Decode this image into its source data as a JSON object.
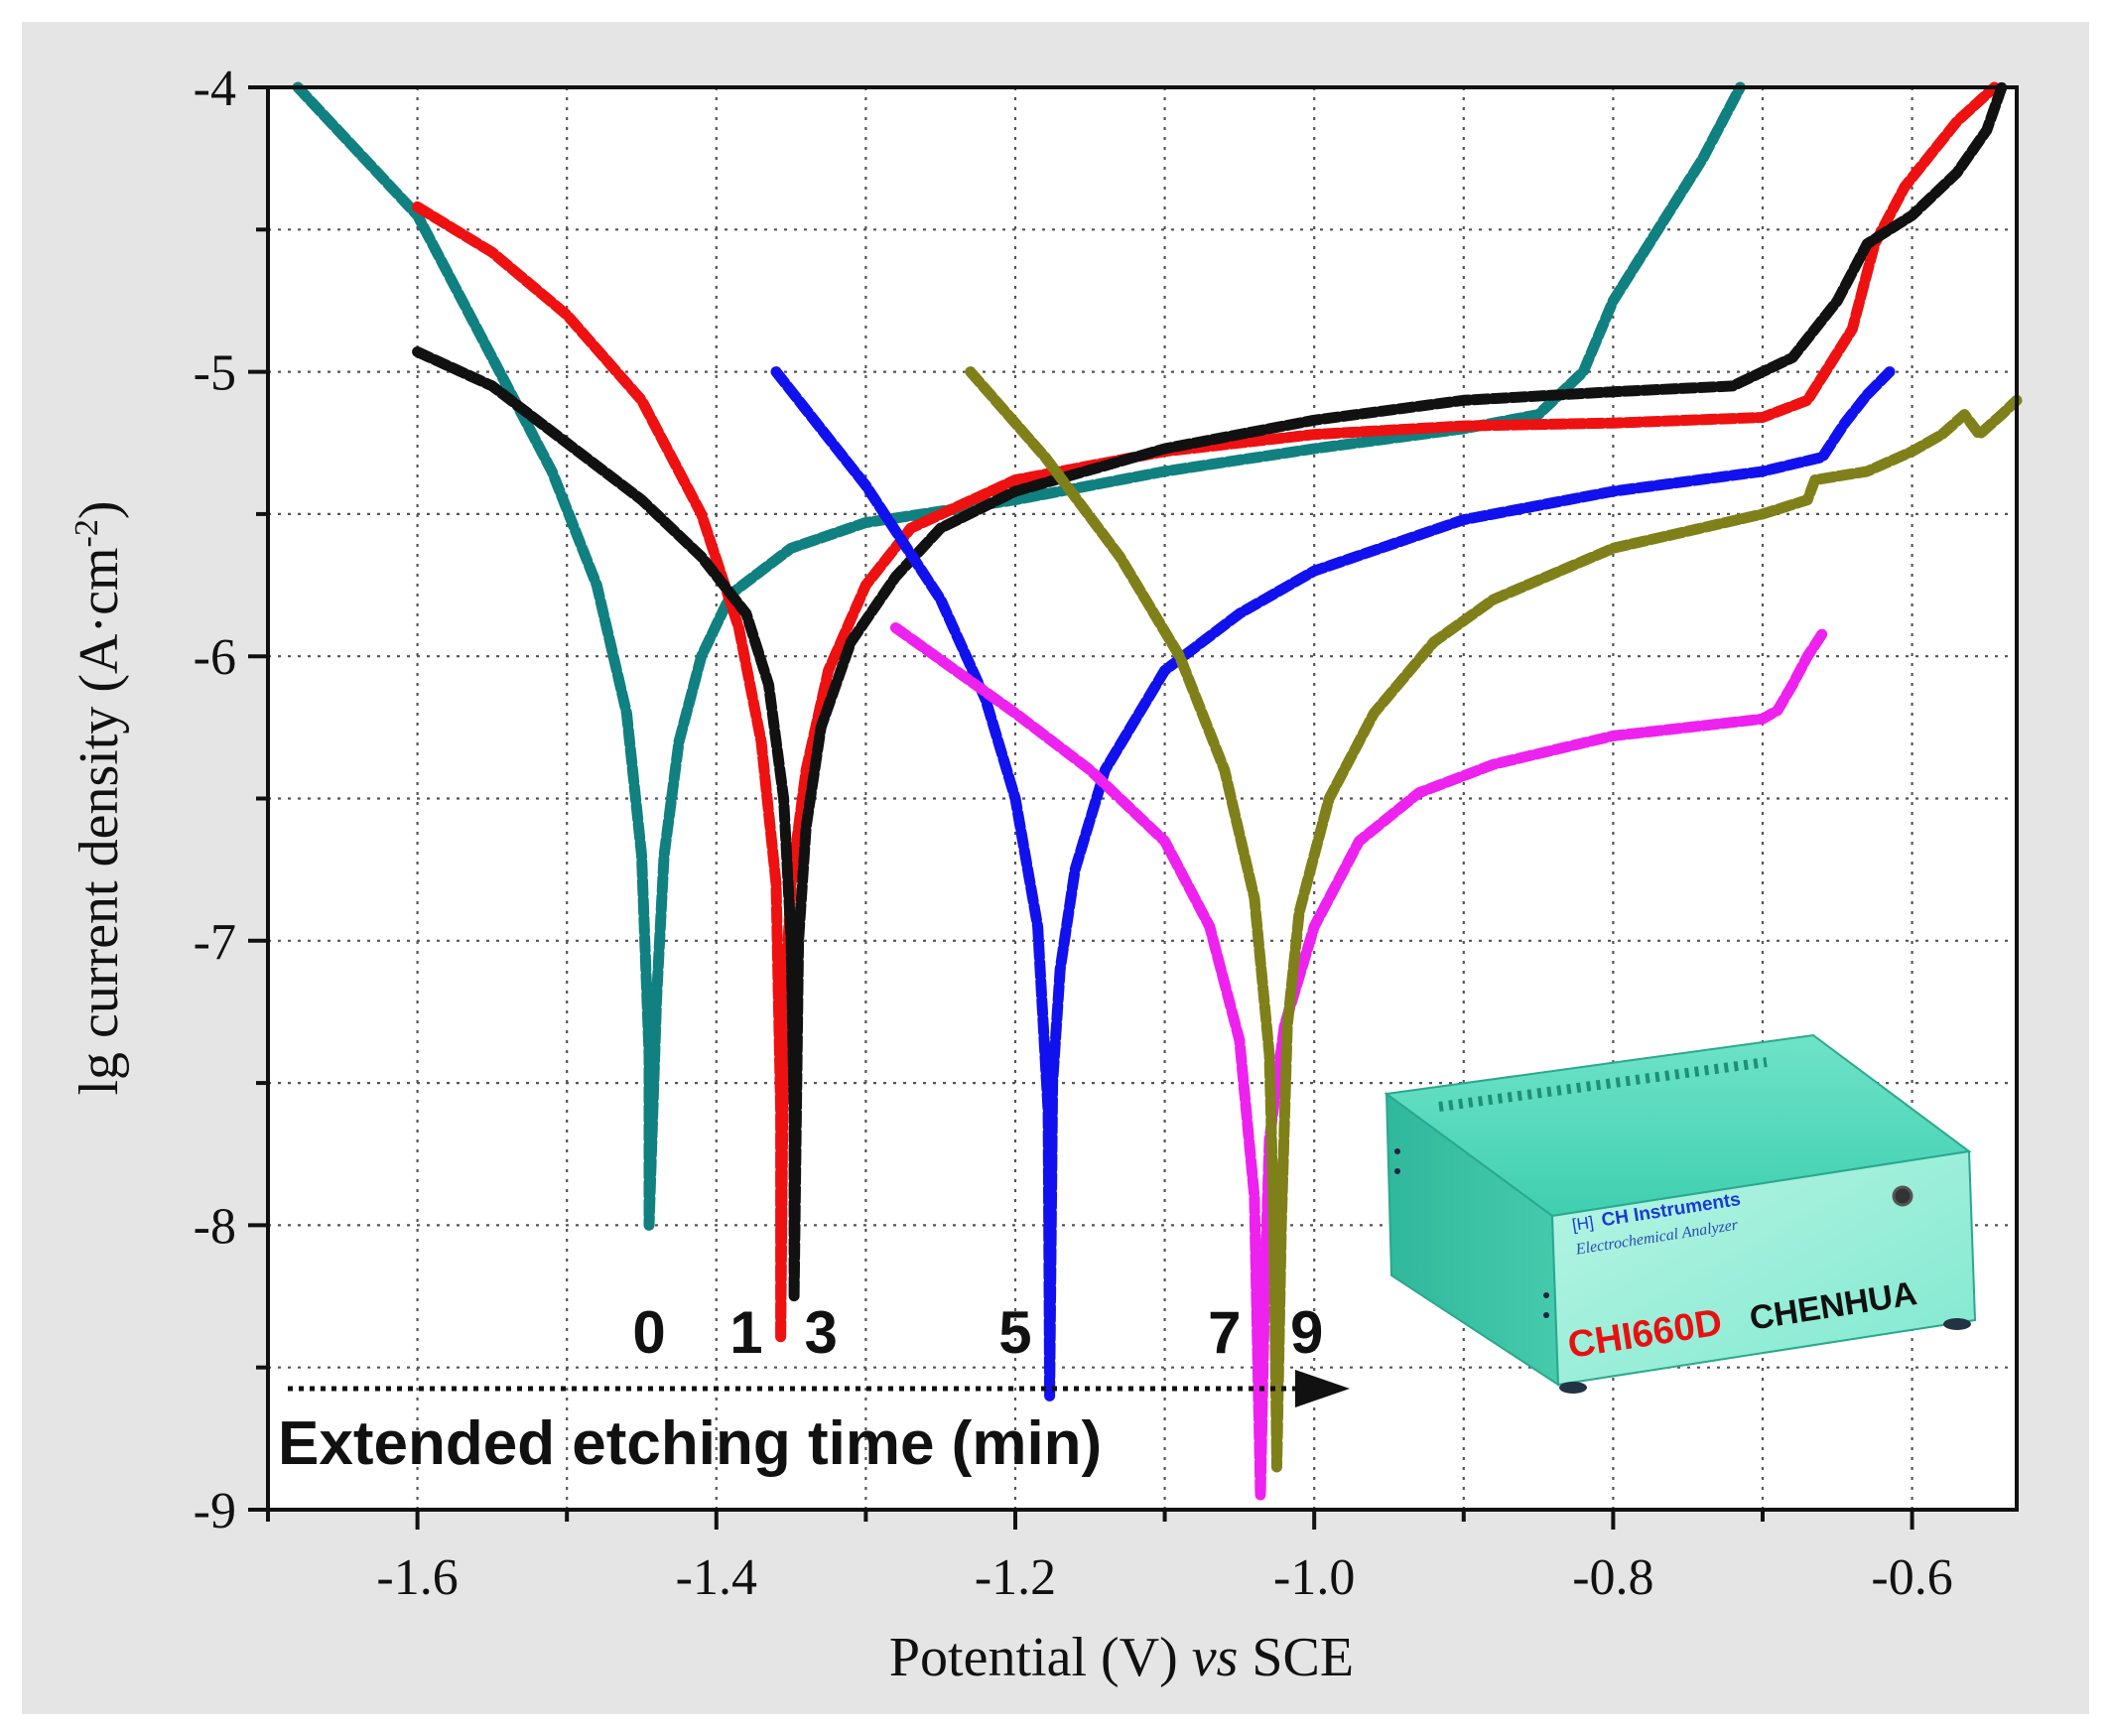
{
  "chart_data": {
    "type": "line",
    "xlabel_main": "Potential (V)",
    "xlabel_italic": "vs",
    "xlabel_tail": "SCE",
    "ylabel_main": "lg current density (A·cm",
    "ylabel_sup": "-2",
    "ylabel_close": ")",
    "xlim": [
      -1.7,
      -0.53
    ],
    "ylim": [
      -9,
      -4
    ],
    "x_ticks": [
      -1.6,
      -1.4,
      -1.2,
      -1.0,
      -0.8,
      -0.6
    ],
    "x_tick_labels": [
      "-1.6",
      "-1.4",
      "-1.2",
      "-1.0",
      "-0.8",
      "-0.6"
    ],
    "y_ticks": [
      -4,
      -5,
      -6,
      -7,
      -8,
      -9
    ],
    "y_tick_labels": [
      "-4",
      "-5",
      "-6",
      "-7",
      "-8",
      "-9"
    ],
    "grid": true,
    "series": [
      {
        "label": "0",
        "color": "#108080",
        "points": [
          [
            -1.68,
            -4.0
          ],
          [
            -1.6,
            -4.45
          ],
          [
            -1.55,
            -4.95
          ],
          [
            -1.51,
            -5.35
          ],
          [
            -1.48,
            -5.75
          ],
          [
            -1.46,
            -6.2
          ],
          [
            -1.45,
            -6.7
          ],
          [
            -1.445,
            -7.4
          ],
          [
            -1.445,
            -8.0
          ],
          [
            -1.44,
            -7.2
          ],
          [
            -1.435,
            -6.7
          ],
          [
            -1.425,
            -6.3
          ],
          [
            -1.41,
            -6.0
          ],
          [
            -1.39,
            -5.78
          ],
          [
            -1.35,
            -5.62
          ],
          [
            -1.3,
            -5.53
          ],
          [
            -1.2,
            -5.45
          ],
          [
            -1.1,
            -5.35
          ],
          [
            -1.0,
            -5.27
          ],
          [
            -0.9,
            -5.2
          ],
          [
            -0.85,
            -5.15
          ],
          [
            -0.82,
            -5.0
          ],
          [
            -0.8,
            -4.75
          ],
          [
            -0.77,
            -4.5
          ],
          [
            -0.74,
            -4.25
          ],
          [
            -0.715,
            -4.0
          ]
        ]
      },
      {
        "label": "1",
        "color": "#ee1111",
        "points": [
          [
            -1.6,
            -4.42
          ],
          [
            -1.55,
            -4.58
          ],
          [
            -1.5,
            -4.8
          ],
          [
            -1.45,
            -5.1
          ],
          [
            -1.41,
            -5.5
          ],
          [
            -1.385,
            -5.9
          ],
          [
            -1.37,
            -6.3
          ],
          [
            -1.36,
            -6.8
          ],
          [
            -1.357,
            -7.6
          ],
          [
            -1.357,
            -8.4
          ],
          [
            -1.355,
            -7.3
          ],
          [
            -1.35,
            -6.8
          ],
          [
            -1.34,
            -6.4
          ],
          [
            -1.325,
            -6.05
          ],
          [
            -1.3,
            -5.75
          ],
          [
            -1.27,
            -5.55
          ],
          [
            -1.2,
            -5.38
          ],
          [
            -1.1,
            -5.28
          ],
          [
            -1.0,
            -5.22
          ],
          [
            -0.9,
            -5.19
          ],
          [
            -0.8,
            -5.18
          ],
          [
            -0.7,
            -5.16
          ],
          [
            -0.67,
            -5.1
          ],
          [
            -0.64,
            -4.85
          ],
          [
            -0.625,
            -4.55
          ],
          [
            -0.605,
            -4.35
          ],
          [
            -0.57,
            -4.12
          ],
          [
            -0.545,
            -4.0
          ]
        ]
      },
      {
        "label": "3",
        "color": "#111111",
        "points": [
          [
            -1.6,
            -4.93
          ],
          [
            -1.55,
            -5.05
          ],
          [
            -1.5,
            -5.25
          ],
          [
            -1.45,
            -5.45
          ],
          [
            -1.41,
            -5.65
          ],
          [
            -1.38,
            -5.85
          ],
          [
            -1.365,
            -6.1
          ],
          [
            -1.355,
            -6.5
          ],
          [
            -1.35,
            -7.0
          ],
          [
            -1.348,
            -7.6
          ],
          [
            -1.348,
            -8.25
          ],
          [
            -1.345,
            -7.0
          ],
          [
            -1.34,
            -6.6
          ],
          [
            -1.33,
            -6.25
          ],
          [
            -1.31,
            -5.95
          ],
          [
            -1.28,
            -5.72
          ],
          [
            -1.25,
            -5.55
          ],
          [
            -1.2,
            -5.42
          ],
          [
            -1.1,
            -5.27
          ],
          [
            -1.0,
            -5.17
          ],
          [
            -0.9,
            -5.1
          ],
          [
            -0.8,
            -5.07
          ],
          [
            -0.72,
            -5.05
          ],
          [
            -0.68,
            -4.95
          ],
          [
            -0.65,
            -4.75
          ],
          [
            -0.63,
            -4.55
          ],
          [
            -0.6,
            -4.45
          ],
          [
            -0.57,
            -4.3
          ],
          [
            -0.55,
            -4.15
          ],
          [
            -0.54,
            -4.0
          ]
        ]
      },
      {
        "label": "5",
        "color": "#1111ee",
        "points": [
          [
            -1.36,
            -5.0
          ],
          [
            -1.3,
            -5.4
          ],
          [
            -1.25,
            -5.8
          ],
          [
            -1.22,
            -6.15
          ],
          [
            -1.2,
            -6.5
          ],
          [
            -1.185,
            -6.95
          ],
          [
            -1.178,
            -7.6
          ],
          [
            -1.177,
            -8.6
          ],
          [
            -1.175,
            -7.5
          ],
          [
            -1.17,
            -7.1
          ],
          [
            -1.16,
            -6.75
          ],
          [
            -1.14,
            -6.4
          ],
          [
            -1.1,
            -6.05
          ],
          [
            -1.05,
            -5.85
          ],
          [
            -1.0,
            -5.7
          ],
          [
            -0.9,
            -5.52
          ],
          [
            -0.8,
            -5.42
          ],
          [
            -0.7,
            -5.35
          ],
          [
            -0.66,
            -5.3
          ],
          [
            -0.645,
            -5.18
          ],
          [
            -0.63,
            -5.08
          ],
          [
            -0.615,
            -5.0
          ]
        ]
      },
      {
        "label": "7",
        "color": "#ee22ee",
        "points": [
          [
            -1.28,
            -5.9
          ],
          [
            -1.24,
            -6.05
          ],
          [
            -1.2,
            -6.2
          ],
          [
            -1.15,
            -6.4
          ],
          [
            -1.1,
            -6.65
          ],
          [
            -1.07,
            -6.95
          ],
          [
            -1.05,
            -7.35
          ],
          [
            -1.04,
            -7.9
          ],
          [
            -1.036,
            -8.95
          ],
          [
            -1.033,
            -8.2
          ],
          [
            -1.03,
            -7.7
          ],
          [
            -1.02,
            -7.3
          ],
          [
            -1.0,
            -6.95
          ],
          [
            -0.97,
            -6.65
          ],
          [
            -0.93,
            -6.48
          ],
          [
            -0.88,
            -6.38
          ],
          [
            -0.8,
            -6.28
          ],
          [
            -0.7,
            -6.22
          ],
          [
            -0.69,
            -6.19
          ],
          [
            -0.68,
            -6.1
          ],
          [
            -0.67,
            -6.0
          ],
          [
            -0.66,
            -5.92
          ]
        ]
      },
      {
        "label": "9",
        "color": "#80801a",
        "points": [
          [
            -1.23,
            -5.0
          ],
          [
            -1.18,
            -5.3
          ],
          [
            -1.13,
            -5.65
          ],
          [
            -1.09,
            -6.0
          ],
          [
            -1.06,
            -6.4
          ],
          [
            -1.04,
            -6.85
          ],
          [
            -1.03,
            -7.4
          ],
          [
            -1.027,
            -8.0
          ],
          [
            -1.025,
            -8.85
          ],
          [
            -1.022,
            -8.0
          ],
          [
            -1.018,
            -7.3
          ],
          [
            -1.01,
            -6.9
          ],
          [
            -0.99,
            -6.5
          ],
          [
            -0.96,
            -6.2
          ],
          [
            -0.92,
            -5.95
          ],
          [
            -0.88,
            -5.8
          ],
          [
            -0.8,
            -5.62
          ],
          [
            -0.7,
            -5.5
          ],
          [
            -0.67,
            -5.45
          ],
          [
            -0.665,
            -5.38
          ],
          [
            -0.63,
            -5.35
          ],
          [
            -0.6,
            -5.28
          ],
          [
            -0.58,
            -5.22
          ],
          [
            -0.565,
            -5.15
          ],
          [
            -0.555,
            -5.22
          ],
          [
            -0.54,
            -5.15
          ],
          [
            -0.53,
            -5.1
          ]
        ]
      }
    ],
    "annotation": "Extended etching time (min)",
    "number_labels": [
      {
        "text": "0",
        "x": -1.445
      },
      {
        "text": "1",
        "x": -1.38
      },
      {
        "text": "3",
        "x": -1.33
      },
      {
        "text": "5",
        "x": -1.2
      },
      {
        "text": "7",
        "x": -1.06
      },
      {
        "text": "9",
        "x": -1.005
      }
    ]
  },
  "instrument": {
    "brand": "CH Instruments",
    "subtitle": "Electrochemical Analyzer",
    "model": "CHI660D",
    "maker": "CHENHUA",
    "logo_mark": "[H]"
  }
}
